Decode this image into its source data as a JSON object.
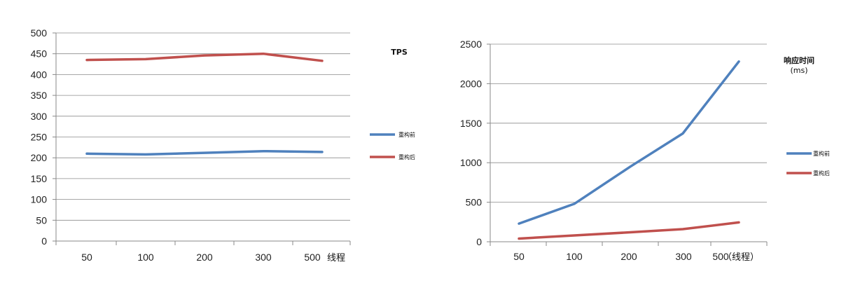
{
  "chart_data": [
    {
      "type": "line",
      "title": "TPS",
      "x_unit_label": "线程",
      "categories": [
        "50",
        "100",
        "200",
        "300",
        "500"
      ],
      "ylim": [
        0,
        500
      ],
      "yticks": [
        0,
        50,
        100,
        150,
        200,
        250,
        300,
        350,
        400,
        450,
        500
      ],
      "grid": true,
      "legend": "right",
      "series": [
        {
          "name": "重构前",
          "color": "#4f81bd",
          "values": [
            210,
            208,
            212,
            216,
            214
          ]
        },
        {
          "name": "重构后",
          "color": "#c0504d",
          "values": [
            435,
            437,
            446,
            450,
            433
          ]
        }
      ]
    },
    {
      "type": "line",
      "title": "响应时间",
      "subtitle": "(ms)",
      "x_unit_label": "（线程）",
      "categories": [
        "50",
        "100",
        "200",
        "300",
        "500"
      ],
      "ylim": [
        0,
        2500
      ],
      "yticks": [
        0,
        500,
        1000,
        1500,
        2000,
        2500
      ],
      "grid": true,
      "legend": "right",
      "series": [
        {
          "name": "重构前",
          "color": "#4f81bd",
          "values": [
            230,
            480,
            950,
            1370,
            2280
          ]
        },
        {
          "name": "重构后",
          "color": "#c0504d",
          "values": [
            40,
            80,
            120,
            160,
            245
          ]
        }
      ]
    }
  ]
}
